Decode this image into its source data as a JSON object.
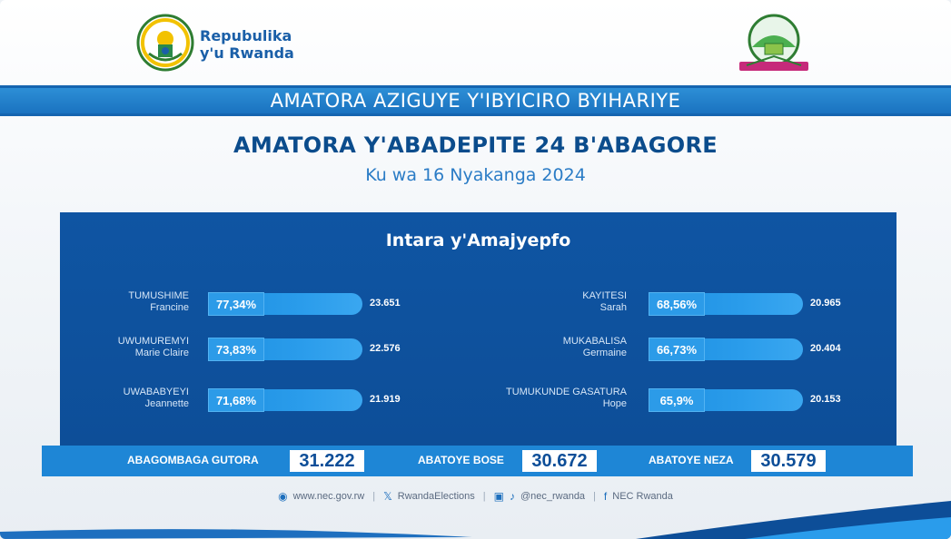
{
  "header": {
    "brand_line1": "Repubulika",
    "brand_line2": "y'u Rwanda",
    "banner": "AMATORA AZIGUYE Y'IBYICIRO BYIHARIYE",
    "title": "AMATORA Y'ABADEPITE 24 B'ABAGORE",
    "subtitle": "Ku wa 16 Nyakanga 2024"
  },
  "panel": {
    "title": "Intara y'Amajyepfo"
  },
  "candidates_left": [
    {
      "line1": "TUMUSHIME",
      "line2": "Francine",
      "percent": "77,34%",
      "votes": "23.651",
      "share": 0.7734
    },
    {
      "line1": "UWUMUREMYI",
      "line2": "Marie Claire",
      "percent": "73,83%",
      "votes": "22.576",
      "share": 0.7383
    },
    {
      "line1": "UWABABYEYI",
      "line2": "Jeannette",
      "percent": "71,68%",
      "votes": "21.919",
      "share": 0.7168
    }
  ],
  "candidates_right": [
    {
      "line1": "KAYITESI",
      "line2": "Sarah",
      "percent": "68,56%",
      "votes": "20.965",
      "share": 0.6856
    },
    {
      "line1": "MUKABALISA",
      "line2": "Germaine",
      "percent": "66,73%",
      "votes": "20.404",
      "share": 0.6673
    },
    {
      "line1": "TUMUKUNDE GASATURA",
      "line2": "Hope",
      "percent": "65,9%",
      "votes": "20.153",
      "share": 0.659
    }
  ],
  "totals": {
    "registered_label": "ABAGOMBAGA GUTORA",
    "registered_value": "31.222",
    "voted_label": "ABATOYE BOSE",
    "voted_value": "30.672",
    "valid_label": "ABATOYE NEZA",
    "valid_value": "30.579"
  },
  "footer": {
    "website": "www.nec.gov.rw",
    "x_handle": "RwandaElections",
    "ig_tiktok_handle": "@nec_rwanda",
    "facebook": "NEC Rwanda"
  },
  "colors": {
    "brand_blue": "#0b4c8c",
    "panel_blue": "#0f55a3",
    "bar_blue": "#2a9ceb",
    "totals_blue": "#1e86d6"
  },
  "icons": [
    "rwanda-coat-of-arms-icon",
    "nec-emblem-icon",
    "globe-icon",
    "x-icon",
    "instagram-icon",
    "tiktok-icon",
    "facebook-icon"
  ]
}
